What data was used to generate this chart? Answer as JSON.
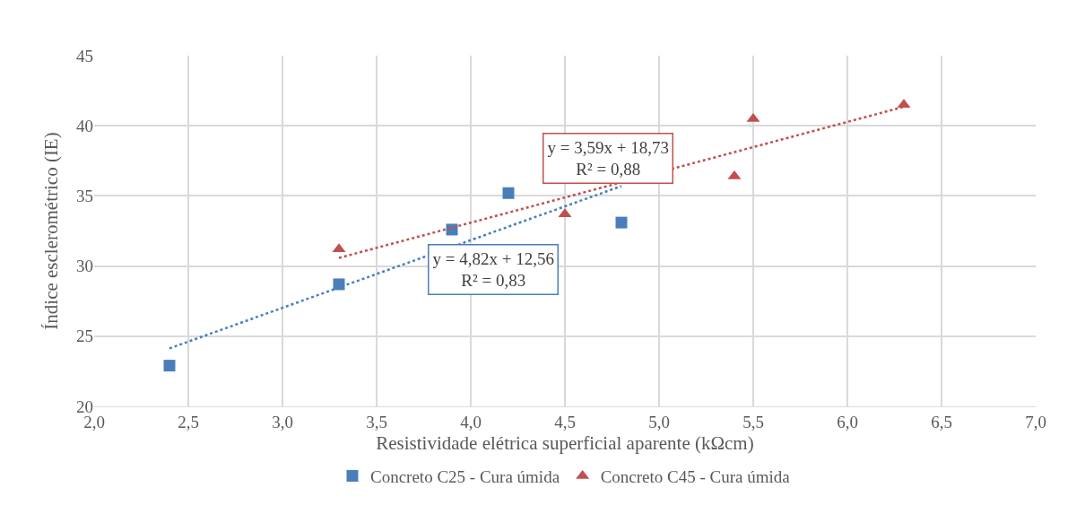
{
  "chart_data": {
    "type": "scatter",
    "xlabel": "Resistividade elétrica superficial aparente (kΩcm)",
    "ylabel": "Índice esclerométrico (IE)",
    "xlim": [
      2,
      7
    ],
    "xticks": [
      {
        "value": 2,
        "label": "2,0"
      },
      {
        "value": 2.5,
        "label": "2,5"
      },
      {
        "value": 3,
        "label": "3,0"
      },
      {
        "value": 3.5,
        "label": "3,5"
      },
      {
        "value": 4,
        "label": "4,0"
      },
      {
        "value": 4.5,
        "label": "4,5"
      },
      {
        "value": 5,
        "label": "5,0"
      },
      {
        "value": 5.5,
        "label": "5,5"
      },
      {
        "value": 6,
        "label": "6,0"
      },
      {
        "value": 6.5,
        "label": "6,5"
      },
      {
        "value": 7,
        "label": "7,0"
      }
    ],
    "ylim": [
      20,
      45
    ],
    "yticks": [
      20,
      25,
      30,
      35,
      40,
      45
    ],
    "grid": true,
    "legend": "bottom",
    "series": [
      {
        "name": "Concreto C25 - Cura úmida",
        "color": "#4a7ebb",
        "marker": "square",
        "x": [
          2.4,
          3.3,
          3.9,
          4.2,
          4.8
        ],
        "values": [
          22.9,
          28.7,
          32.6,
          35.2,
          33.1
        ]
      },
      {
        "name": "Concreto C45 - Cura úmida",
        "color": "#c0504d",
        "marker": "triangle",
        "x": [
          3.3,
          4.5,
          5.4,
          5.5,
          6.3
        ],
        "values": [
          31.2,
          33.7,
          36.4,
          40.5,
          41.5
        ]
      },
      {
        "type": "line",
        "color": "#4a7ebb",
        "line_style": "dotted",
        "marker": "none",
        "x": [
          2.4,
          4.8
        ],
        "values": [
          24.13,
          35.7
        ]
      },
      {
        "type": "line",
        "color": "#c0504d",
        "line_style": "dotted",
        "marker": "none",
        "x": [
          3.3,
          6.3
        ],
        "values": [
          30.58,
          41.35
        ]
      }
    ],
    "annotations": [
      "y = 4,82x + 12,56\nR² = 0,83",
      "y = 3,59x + 18,73\nR² = 0,88"
    ]
  }
}
